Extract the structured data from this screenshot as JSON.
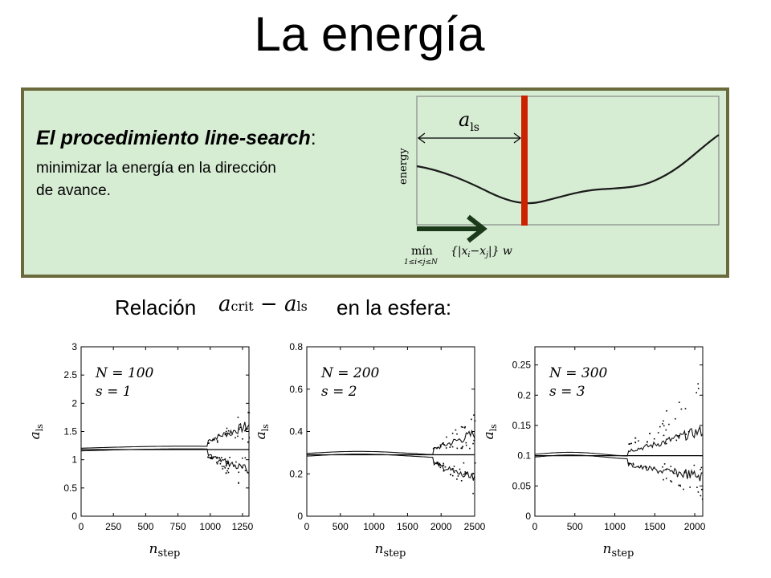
{
  "title": "La energía",
  "box": {
    "heading": "El procedimiento line-search",
    "heading_colon": ":",
    "text_line1": "minimizar la energía en la dirección",
    "text_line2": "de avance.",
    "plot": {
      "ylabel": "energy",
      "step_label_symbol": "a",
      "step_label_sub": "ls",
      "xlabel_op": "mín",
      "xlabel_range": "1≤i<j≤N",
      "xlabel_expr": "{|x",
      "xlabel_i": "i",
      "xlabel_minus": "−x",
      "xlabel_j": "j",
      "xlabel_end": "|} w"
    }
  },
  "relation": {
    "prefix": "Relación",
    "math_a": "a",
    "math_crit": "crit",
    "math_minus": " − ",
    "math_a2": "a",
    "math_ls": "ls",
    "suffix": "en la esfera:"
  },
  "charts": [
    {
      "annotation_N": "N = 100",
      "annotation_s": "s = 1",
      "ylabel": "a",
      "ylabel_sub": "ls",
      "xlabel": "n",
      "xlabel_sub": "step",
      "yticks": [
        "0",
        "0.5",
        "1",
        "1.5",
        "2",
        "2.5",
        "3"
      ],
      "xticks": [
        "0",
        "250",
        "500",
        "750",
        "1000",
        "1250"
      ]
    },
    {
      "annotation_N": "N = 200",
      "annotation_s": "s = 2",
      "ylabel": "a",
      "ylabel_sub": "ls",
      "xlabel": "n",
      "xlabel_sub": "step",
      "yticks": [
        "0",
        "0.2",
        "0.4",
        "0.6",
        "0.8"
      ],
      "xticks": [
        "0",
        "500",
        "1000",
        "1500",
        "2000",
        "2500"
      ]
    },
    {
      "annotation_N": "N = 300",
      "annotation_s": "s = 3",
      "ylabel": "a",
      "ylabel_sub": "ls",
      "xlabel": "n",
      "xlabel_sub": "step",
      "yticks": [
        "0",
        "0.05",
        "0.1",
        "0.15",
        "0.2",
        "0.25"
      ],
      "xticks": [
        "0",
        "500",
        "1000",
        "1500",
        "2000"
      ]
    }
  ],
  "chart_data": [
    {
      "type": "line",
      "xlim": [
        0,
        1300
      ],
      "ylim": [
        0,
        3
      ],
      "series": [
        {
          "x": [
            0,
            250,
            500,
            750,
            1000,
            1300
          ],
          "values": [
            1.18,
            1.18,
            1.18,
            1.18,
            1.18,
            1.18
          ]
        }
      ]
    },
    {
      "type": "line",
      "xlim": [
        0,
        2500
      ],
      "ylim": [
        0,
        0.8
      ],
      "series": [
        {
          "x": [
            0,
            500,
            1000,
            1500,
            2000,
            2500
          ],
          "values": [
            0.29,
            0.29,
            0.29,
            0.29,
            0.29,
            0.29
          ]
        }
      ]
    },
    {
      "type": "line",
      "xlim": [
        0,
        2100
      ],
      "ylim": [
        0,
        0.28
      ],
      "series": [
        {
          "x": [
            0,
            500,
            1000,
            1500,
            2000,
            2100
          ],
          "values": [
            0.1,
            0.1,
            0.1,
            0.1,
            0.1,
            0.1
          ]
        }
      ]
    }
  ],
  "colors": {
    "box_bg": "#d6ecd3",
    "box_border": "#6a6a3c",
    "step_line": "#cc2200",
    "arrow": "#1a3a1a"
  }
}
